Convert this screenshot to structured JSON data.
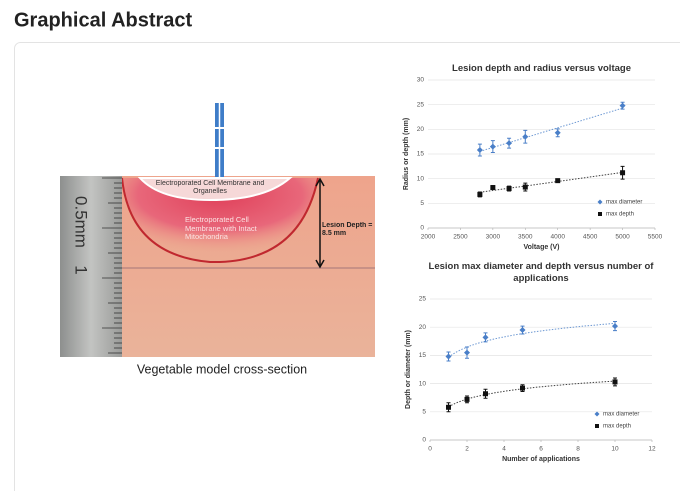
{
  "header": {
    "title": "Graphical Abstract"
  },
  "figure": {
    "top_label": "Electroporated Cell Membrane and Organelles",
    "middle_label": "Electroporated Cell Membrane with Intact Mitochondria",
    "depth_label": "Lesion Depth = 8.5 mm",
    "ruler_unit": "0.5mm",
    "ruler_mark": "1",
    "caption": "Vegetable model cross-section"
  },
  "chart_data": [
    {
      "type": "scatter",
      "title": "Lesion depth and radius versus voltage",
      "x_label": "Voltage (V)",
      "y_label": "Radius or depth (mm)",
      "xlim": [
        2000,
        5500
      ],
      "xticks": [
        2000,
        2500,
        3000,
        3500,
        4000,
        4500,
        5000,
        5500
      ],
      "ylim": [
        0,
        30
      ],
      "yticks": [
        0,
        5,
        10,
        15,
        20,
        25,
        30
      ],
      "grid": true,
      "trendline": "linear",
      "legend": "bottom-right",
      "series": [
        {
          "name": "max diameter",
          "color": "#4a7fc8",
          "marker": "diamond",
          "x": [
            2800,
            3000,
            3250,
            3500,
            4000,
            5000
          ],
          "values": [
            15.8,
            16.5,
            17.2,
            18.5,
            19.3,
            24.8
          ],
          "errors": [
            1.2,
            1.2,
            1.0,
            1.3,
            0.8,
            0.7
          ]
        },
        {
          "name": "max depth",
          "color": "#111111",
          "marker": "square",
          "x": [
            2800,
            3000,
            3250,
            3500,
            4000,
            5000
          ],
          "values": [
            6.8,
            8.2,
            8.0,
            8.3,
            9.6,
            11.2
          ],
          "errors": [
            0.5,
            0.4,
            0.5,
            0.8,
            0.3,
            1.3
          ]
        }
      ]
    },
    {
      "type": "scatter",
      "title": "Lesion max diameter and depth versus number of applications",
      "x_label": "Number of applications",
      "y_label": "Depth or diameter (mm)",
      "xlim": [
        0,
        12
      ],
      "xticks": [
        0,
        2,
        4,
        6,
        8,
        10,
        12
      ],
      "ylim": [
        0,
        25
      ],
      "yticks": [
        0,
        5,
        10,
        15,
        20,
        25
      ],
      "grid": true,
      "trendline": "log",
      "legend": "bottom-right",
      "series": [
        {
          "name": "max diameter",
          "color": "#4a7fc8",
          "marker": "diamond",
          "x": [
            1,
            2,
            3,
            5,
            10
          ],
          "values": [
            14.8,
            15.5,
            18.2,
            19.5,
            20.2
          ],
          "errors": [
            0.8,
            1.0,
            0.8,
            0.7,
            0.8
          ]
        },
        {
          "name": "max depth",
          "color": "#111111",
          "marker": "square",
          "x": [
            1,
            2,
            3,
            5,
            10
          ],
          "values": [
            5.8,
            7.2,
            8.2,
            9.2,
            10.3
          ],
          "errors": [
            0.8,
            0.6,
            0.8,
            0.6,
            0.7
          ]
        }
      ]
    }
  ]
}
